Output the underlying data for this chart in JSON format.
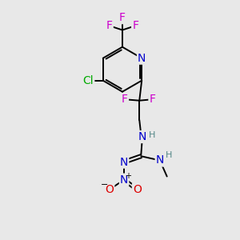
{
  "background_color": "#e8e8e8",
  "atom_colors": {
    "N": "#0000cc",
    "F": "#cc00cc",
    "Cl": "#00aa00",
    "O": "#dd0000",
    "C": "#000000",
    "H": "#558888"
  },
  "font_size": 10,
  "fig_size": [
    3.0,
    3.0
  ],
  "dpi": 100
}
